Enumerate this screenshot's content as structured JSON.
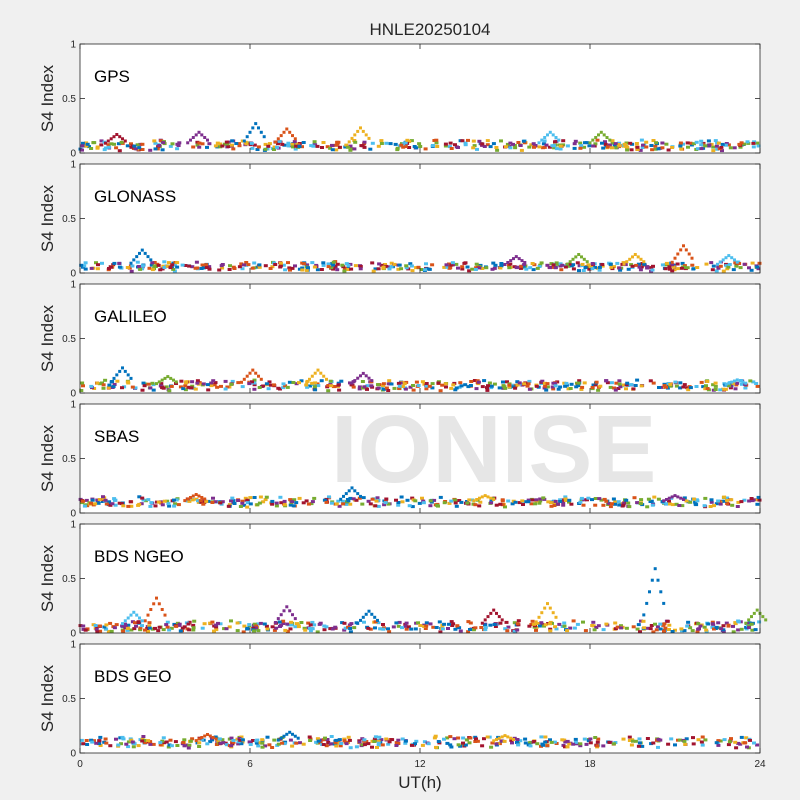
{
  "figure": {
    "title": "HNLE20250104",
    "xlabel": "UT(h)",
    "ylabel": "S4 Index",
    "watermark": "IONISE"
  },
  "chart_data": {
    "type": "scatter",
    "title": "HNLE20250104",
    "xlabel": "UT(h)",
    "ylabel": "S4 Index",
    "xlim": [
      0,
      24
    ],
    "ylim": [
      0,
      1
    ],
    "xticks": [
      "0",
      "6",
      "12",
      "18",
      "24"
    ],
    "yticks": [
      "0",
      "0.5",
      "1"
    ],
    "grid": false,
    "colors": [
      "#0072bd",
      "#d95319",
      "#edb120",
      "#7e2f8e",
      "#77ac30",
      "#4dbeee",
      "#a2142f"
    ],
    "panels": [
      {
        "label": "GPS",
        "baseline": 0.07,
        "spread": 0.035,
        "features": [
          [
            6.2,
            0.27
          ],
          [
            7.3,
            0.22
          ],
          [
            9.9,
            0.23
          ],
          [
            4.2,
            0.19
          ],
          [
            18.4,
            0.19
          ],
          [
            16.6,
            0.19
          ],
          [
            1.3,
            0.17
          ]
        ]
      },
      {
        "label": "GLONASS",
        "baseline": 0.06,
        "spread": 0.03,
        "features": [
          [
            2.2,
            0.21
          ],
          [
            21.3,
            0.25
          ],
          [
            19.6,
            0.17
          ],
          [
            15.4,
            0.15
          ],
          [
            17.6,
            0.17
          ],
          [
            22.9,
            0.16
          ]
        ]
      },
      {
        "label": "GALILEO",
        "baseline": 0.07,
        "spread": 0.035,
        "features": [
          [
            1.5,
            0.23
          ],
          [
            6.1,
            0.21
          ],
          [
            8.4,
            0.21
          ],
          [
            10.0,
            0.18
          ],
          [
            3.1,
            0.15
          ],
          [
            23.2,
            0.12
          ]
        ]
      },
      {
        "label": "SBAS",
        "baseline": 0.1,
        "spread": 0.035,
        "features": [
          [
            9.6,
            0.23
          ],
          [
            4.1,
            0.17
          ],
          [
            14.3,
            0.16
          ],
          [
            21.0,
            0.16
          ]
        ]
      },
      {
        "label": "BDS NGEO",
        "baseline": 0.06,
        "spread": 0.04,
        "features": [
          [
            20.3,
            0.59
          ],
          [
            2.7,
            0.32
          ],
          [
            16.5,
            0.27
          ],
          [
            7.3,
            0.24
          ],
          [
            23.9,
            0.21
          ],
          [
            1.9,
            0.19
          ],
          [
            14.6,
            0.21
          ],
          [
            10.2,
            0.2
          ]
        ]
      },
      {
        "label": "BDS GEO",
        "baseline": 0.1,
        "spread": 0.04,
        "features": [
          [
            7.4,
            0.19
          ],
          [
            4.5,
            0.17
          ],
          [
            15.0,
            0.16
          ]
        ]
      }
    ]
  }
}
